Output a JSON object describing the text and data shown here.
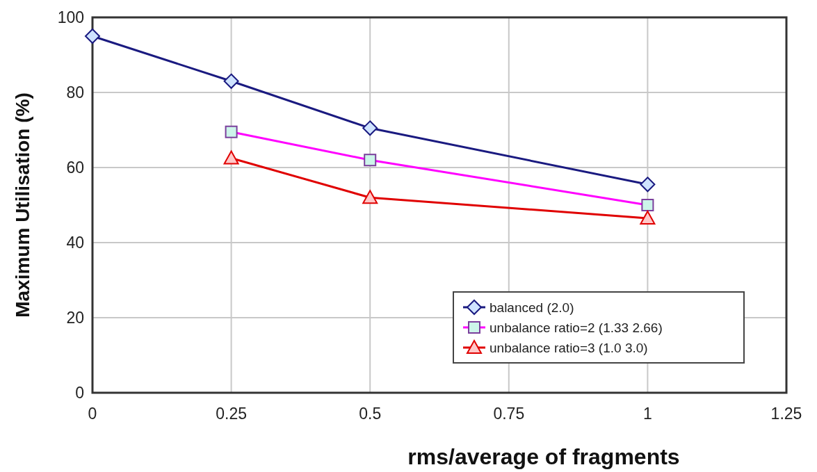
{
  "chart_data": {
    "type": "line",
    "xlabel": "rms/average of fragments",
    "ylabel": "Maximum Utilisation (%)",
    "xlim": [
      0,
      1.25
    ],
    "xticks": [
      0,
      0.25,
      0.5,
      0.75,
      1,
      1.25
    ],
    "ylim": [
      0,
      100
    ],
    "yticks": [
      0,
      20,
      40,
      60,
      80,
      100
    ],
    "grid": true,
    "legend": "bottom right",
    "series": [
      {
        "name": "balanced (2.0)",
        "color": "#1a1a80",
        "marker": "diamond",
        "x": [
          0,
          0.25,
          0.5,
          1
        ],
        "values": [
          95,
          83,
          70.5,
          55.5
        ]
      },
      {
        "name": "unbalance ratio=2 (1.33 2.66)",
        "color": "#ff00ff",
        "marker": "square",
        "x": [
          0.25,
          0.5,
          1
        ],
        "values": [
          69.5,
          62,
          50
        ]
      },
      {
        "name": "unbalance ratio=3 (1.0 3.0)",
        "color": "#e00000",
        "marker": "triangle",
        "x": [
          0.25,
          0.5,
          1
        ],
        "values": [
          62.5,
          52,
          46.5
        ]
      }
    ]
  }
}
